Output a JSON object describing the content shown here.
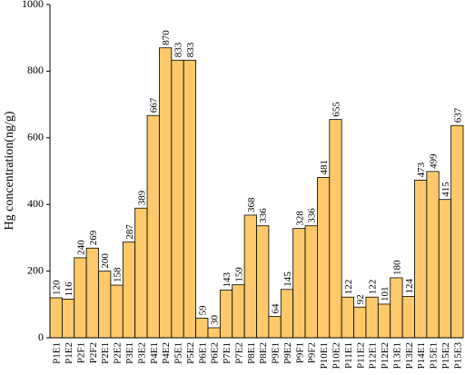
{
  "chart_data": {
    "type": "bar",
    "y_label": "Hg concentration(ng/g)",
    "categories": [
      "P1E1",
      "P1E2",
      "P2F1",
      "P2F2",
      "P2E1",
      "P2E2",
      "P3E1",
      "P3E2",
      "P4E1",
      "P4E2",
      "P5E1",
      "P5E2",
      "P6E1",
      "P6E2",
      "P7E1",
      "P7E2",
      "P8E1",
      "P8E2",
      "P9E1",
      "P9E2",
      "P9F1",
      "P9F2",
      "P10E1",
      "P10E2",
      "P11E1",
      "P11E2",
      "P12E1",
      "P12E2",
      "P13E1",
      "P13E2",
      "P14E1",
      "P15E1",
      "P15E2",
      "P15E3"
    ],
    "values": [
      120,
      116,
      240,
      269,
      200,
      158,
      287,
      389,
      667,
      870,
      833,
      833,
      59,
      30,
      143,
      159,
      368,
      336,
      64,
      145,
      328,
      336,
      481,
      655,
      122,
      92,
      122,
      101,
      180,
      124,
      473,
      499,
      415,
      637
    ],
    "color": "#fdc96a",
    "ylim": [
      0,
      1000
    ],
    "yticks": [
      0,
      200,
      400,
      600,
      800,
      1000
    ],
    "grid": false
  }
}
